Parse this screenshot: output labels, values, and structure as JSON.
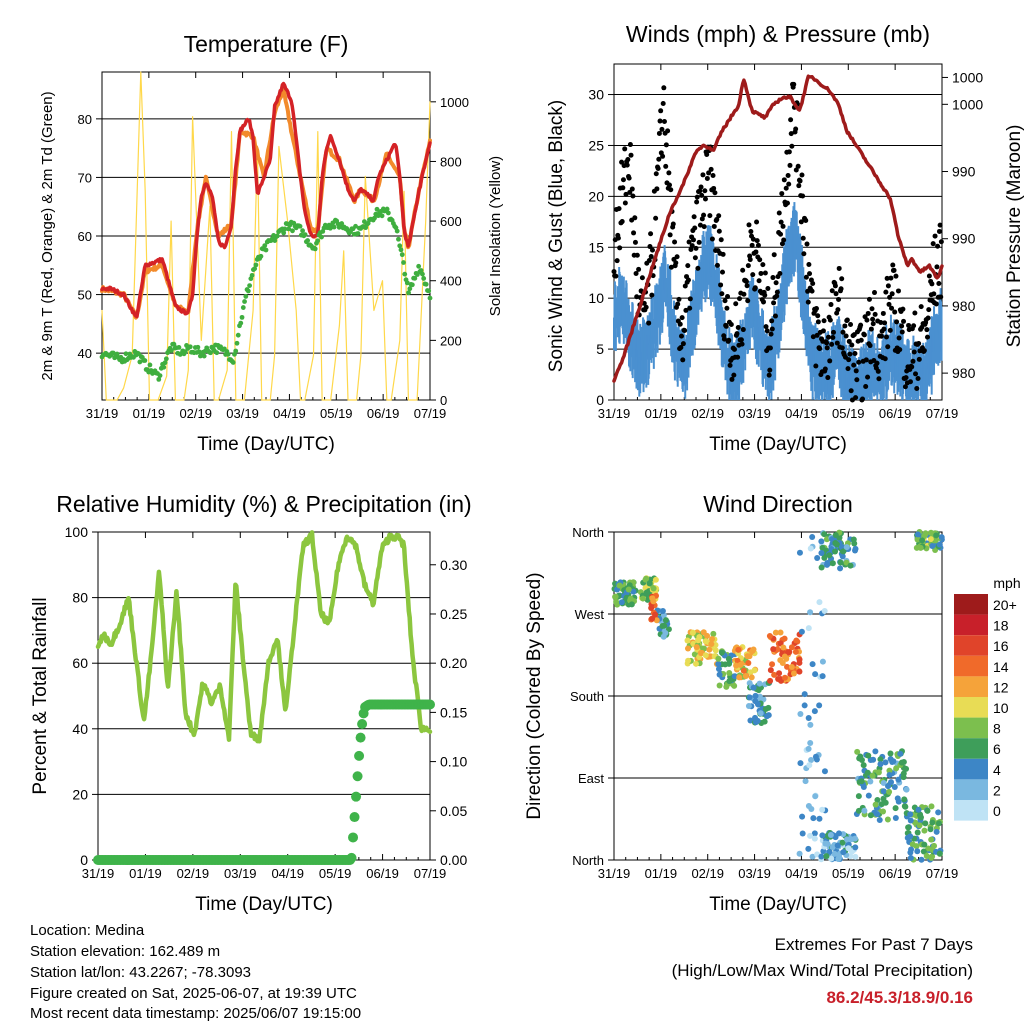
{
  "colors": {
    "temp_2m": "#d42226",
    "temp_9m": "#f28a2b",
    "dewpoint": "#3fae3f",
    "solar": "#ffd84a",
    "wind": "#4a90d0",
    "gust": "#000000",
    "pressure": "#9e1b1b",
    "rh": "#8cc63f",
    "precip": "#3fb34a"
  },
  "x_ticks": [
    "31/19",
    "01/19",
    "02/19",
    "03/19",
    "04/19",
    "05/19",
    "06/19",
    "07/19"
  ],
  "x_label": "Time (Day/UTC)",
  "chart_data": [
    {
      "type": "line",
      "title": "Temperature (F)",
      "xlabel": "Time (Day/UTC)",
      "ylabel": "2m & 9m T (Red, Orange) & 2m Td (Green)",
      "y2label": "Solar Insolation (Yellow)",
      "ylim": [
        32,
        88
      ],
      "y2lim": [
        0,
        1100
      ],
      "yticks": [
        40,
        50,
        60,
        70,
        80
      ],
      "y2ticks": [
        0,
        200,
        400,
        600,
        800,
        1000
      ],
      "series": [
        {
          "name": "2m T",
          "axis": "left",
          "x": [
            0,
            0.2,
            0.5,
            0.8,
            1,
            1.4,
            1.7,
            1.9,
            2,
            2.1,
            2.2,
            2.3,
            2.4,
            2.55,
            2.7,
            2.85,
            3,
            3.1,
            3.2,
            3.4,
            3.5,
            3.6,
            3.75,
            3.9,
            4,
            4.2,
            4.4,
            4.6,
            4.7,
            4.85,
            5,
            5.1,
            5.2,
            5.3,
            5.5,
            5.7,
            5.85,
            6,
            6.15,
            6.3,
            6.4,
            6.6,
            6.8,
            6.9,
            7,
            7.1,
            7.35,
            7.6
          ],
          "y": [
            51,
            51,
            50,
            46,
            55,
            56,
            48,
            47,
            47,
            50,
            60,
            67,
            69,
            67,
            59,
            58,
            62,
            72,
            78,
            80,
            77,
            67,
            70,
            73,
            82,
            86,
            83,
            70,
            64,
            60,
            60,
            70,
            75,
            77,
            73,
            68,
            66,
            68,
            67,
            66,
            70,
            73,
            76,
            70,
            61,
            58,
            68,
            76
          ]
        },
        {
          "name": "9m T",
          "axis": "left",
          "x": [
            0,
            0.5,
            0.8,
            1,
            1.4,
            1.7,
            2,
            2.2,
            2.4,
            2.7,
            3,
            3.2,
            3.5,
            3.75,
            4,
            4.2,
            4.6,
            4.85,
            5,
            5.2,
            5.5,
            5.85,
            6,
            6.3,
            6.6,
            6.9,
            7,
            7.1,
            7.35,
            7.6
          ],
          "y": [
            51,
            50,
            46,
            54,
            55,
            48,
            47,
            61,
            70,
            60,
            62,
            78,
            77,
            70,
            81,
            85,
            70,
            61,
            61,
            75,
            73,
            66,
            68,
            66,
            74,
            70,
            61,
            58,
            68,
            76
          ]
        },
        {
          "name": "2m Td",
          "axis": "left",
          "x": [
            0,
            0.4,
            0.8,
            1,
            1.3,
            1.6,
            1.9,
            2,
            2.3,
            2.6,
            2.9,
            3.05,
            3.2,
            3.35,
            3.5,
            3.7,
            3.9,
            4.05,
            4.3,
            4.6,
            4.9,
            5.2,
            5.5,
            5.8,
            6,
            6.2,
            6.4,
            6.6,
            6.8,
            6.9,
            7,
            7.1,
            7.35,
            7.6
          ],
          "y": [
            40,
            39,
            40,
            38,
            36,
            41,
            40,
            41,
            40,
            41,
            40,
            39,
            45,
            50,
            54,
            57,
            59,
            60,
            62,
            61,
            58,
            62,
            62,
            61,
            61,
            63,
            64,
            64,
            62,
            58,
            55,
            50,
            55,
            50
          ]
        },
        {
          "name": "Solar Insolation",
          "axis": "right",
          "x": [
            0,
            0.1,
            0.35,
            0.5,
            0.7,
            0.9,
            1,
            1.1,
            1.3,
            1.5,
            1.6,
            1.7,
            1.9,
            2,
            2.1,
            2.3,
            2.5,
            2.6,
            2.7,
            2.9,
            3,
            3.1,
            3.3,
            3.5,
            3.6,
            3.7,
            3.9,
            4,
            4.1,
            4.3,
            4.5,
            4.6,
            4.7,
            4.9,
            5,
            5.1,
            5.3,
            5.5,
            5.6,
            5.7,
            5.9,
            6,
            6.1,
            6.3,
            6.5,
            6.6,
            6.7,
            6.9,
            7,
            7.1,
            7.3,
            7.5,
            7.6
          ],
          "y": [
            300,
            0,
            0,
            40,
            150,
            1100,
            700,
            0,
            0,
            80,
            600,
            0,
            0,
            100,
            950,
            200,
            650,
            0,
            0,
            100,
            900,
            0,
            0,
            300,
            850,
            0,
            0,
            150,
            850,
            600,
            300,
            0,
            0,
            150,
            900,
            0,
            0,
            250,
            500,
            0,
            0,
            150,
            750,
            300,
            400,
            0,
            0,
            200,
            700,
            0,
            0,
            600,
            1000
          ]
        }
      ]
    },
    {
      "type": "line",
      "title": "Winds (mph) & Pressure (mb)",
      "xlabel": "Time (Day/UTC)",
      "ylabel": "Sonic Wind & Gust (Blue, Black)",
      "y2label": "Station Pressure (Maroon)",
      "ylim": [
        0,
        33
      ],
      "y2lim": [
        978,
        1003
      ],
      "yticks": [
        0,
        5,
        10,
        15,
        20,
        25,
        30
      ],
      "y2tick_labels": [
        "980",
        "980",
        "990",
        "990",
        "1000",
        "1000"
      ],
      "series": [
        {
          "name": "Sonic Wind",
          "axis": "left",
          "x": [
            0,
            0.2,
            0.4,
            0.6,
            0.8,
            1,
            1.2,
            1.4,
            1.6,
            1.8,
            2,
            2.2,
            2.4,
            2.6,
            2.8,
            3,
            3.2,
            3.4,
            3.6,
            3.8,
            4,
            4.2,
            4.4,
            4.6,
            4.8,
            5,
            5.2,
            5.4,
            5.6,
            5.8,
            6,
            6.2,
            6.4,
            6.6,
            6.8,
            7,
            7.2,
            7.4,
            7.6
          ],
          "y": [
            8,
            10,
            6,
            4,
            5,
            8,
            12,
            6,
            3,
            7,
            12,
            14,
            10,
            4,
            2,
            5,
            9,
            6,
            3,
            7,
            13,
            16,
            10,
            4,
            3,
            3,
            5,
            2,
            1,
            2,
            4,
            2,
            5,
            4,
            2,
            3,
            2,
            5,
            8
          ]
        },
        {
          "name": "Gust",
          "axis": "left",
          "x": [
            0,
            0.2,
            0.35,
            0.6,
            0.8,
            1,
            1.15,
            1.4,
            1.6,
            1.8,
            2,
            2.2,
            2.4,
            2.6,
            2.8,
            3,
            3.2,
            3.4,
            3.6,
            3.8,
            4,
            4.15,
            4.4,
            4.6,
            4.8,
            5,
            5.2,
            5.4,
            5.6,
            5.8,
            6,
            6.2,
            6.4,
            6.6,
            6.8,
            7,
            7.2,
            7.4,
            7.6
          ],
          "y": [
            15,
            20,
            24,
            8,
            10,
            20,
            29,
            12,
            6,
            14,
            18,
            22,
            16,
            8,
            5,
            10,
            16,
            12,
            6,
            14,
            22,
            30,
            18,
            8,
            5,
            6,
            10,
            5,
            3,
            4,
            8,
            5,
            10,
            8,
            4,
            5,
            6,
            12,
            14
          ]
        },
        {
          "name": "Station Pressure",
          "axis": "right",
          "x": [
            0,
            0.2,
            0.5,
            0.8,
            1,
            1.3,
            1.6,
            1.9,
            2.1,
            2.3,
            2.5,
            2.7,
            2.9,
            3,
            3.2,
            3.5,
            3.7,
            3.9,
            4.1,
            4.3,
            4.5,
            4.6,
            4.8,
            5,
            5.2,
            5.4,
            5.6,
            5.8,
            6,
            6.2,
            6.4,
            6.6,
            6.8,
            6.9,
            7.1,
            7.3,
            7.5,
            7.6
          ],
          "y": [
            979.5,
            981,
            984,
            987,
            989,
            992,
            994,
            996.5,
            997,
            996.5,
            998,
            999,
            1000,
            1002,
            999.5,
            999,
            1000,
            1000.5,
            1000.5,
            999.5,
            1002,
            1002,
            1001.5,
            1001,
            1000,
            998,
            997,
            996,
            995,
            994,
            993,
            990,
            988,
            988.5,
            987.5,
            988,
            987,
            988
          ]
        }
      ]
    },
    {
      "type": "line",
      "title": "Relative Humidity (%) & Precipitation (in)",
      "xlabel": "Time (Day/UTC)",
      "ylabel": "Percent & Total Rainfall",
      "ylim": [
        0,
        100
      ],
      "y2lim": [
        0,
        0.3333
      ],
      "yticks": [
        0,
        20,
        40,
        60,
        80,
        100
      ],
      "y2tick_labels": [
        "0.00",
        "0.05",
        "0.10",
        "0.15",
        "0.20",
        "0.25",
        "0.30"
      ],
      "series": [
        {
          "name": "RH",
          "axis": "left",
          "x": [
            0,
            0.1,
            0.3,
            0.5,
            0.7,
            0.9,
            1.05,
            1.2,
            1.4,
            1.6,
            1.8,
            2,
            2.2,
            2.4,
            2.6,
            2.8,
            3.0,
            3.15,
            3.3,
            3.5,
            3.7,
            3.9,
            4.1,
            4.3,
            4.5,
            4.7,
            4.9,
            5.1,
            5.3,
            5.5,
            5.7,
            5.9,
            6.1,
            6.3,
            6.5,
            6.7,
            6.9,
            7.0,
            7.2,
            7.4,
            7.6
          ],
          "y": [
            64,
            69,
            66,
            72,
            80,
            58,
            42,
            60,
            88,
            52,
            82,
            45,
            38,
            54,
            48,
            53,
            37,
            85,
            64,
            38,
            37,
            60,
            68,
            45,
            72,
            96,
            99,
            75,
            72,
            90,
            99,
            96,
            84,
            78,
            95,
            99,
            98,
            96,
            62,
            40,
            40
          ]
        },
        {
          "name": "Total Rainfall",
          "axis": "right",
          "x": [
            0,
            5.8,
            5.85,
            5.9,
            5.95,
            6.0,
            6.05,
            6.1,
            6.2,
            6.5,
            7.0,
            7.6
          ],
          "y": [
            0,
            0,
            0.03,
            0.06,
            0.09,
            0.12,
            0.14,
            0.155,
            0.158,
            0.158,
            0.158,
            0.158
          ]
        }
      ]
    },
    {
      "type": "scatter",
      "title": "Wind Direction",
      "xlabel": "Time (Day/UTC)",
      "ylabel": "Direction (Colored By Speed)",
      "ylim": [
        0,
        360
      ],
      "ytick_labels": [
        "North",
        "East",
        "South",
        "West",
        "North"
      ],
      "legend": {
        "title": "mph",
        "labels": [
          "20+",
          "18",
          "16",
          "14",
          "12",
          "10",
          "8",
          "6",
          "4",
          "2",
          "0"
        ],
        "colors": [
          "#9e1b1b",
          "#c8202a",
          "#e0442a",
          "#f06a2a",
          "#f5a33a",
          "#e8dc55",
          "#7cbf4e",
          "#3e9e5a",
          "#3d86c6",
          "#7ab8e0",
          "#bfe3f5"
        ]
      },
      "clusters": [
        {
          "x": [
            0,
            0.5
          ],
          "dir": [
            280,
            305
          ],
          "speed": 6
        },
        {
          "x": [
            0.6,
            1.0
          ],
          "dir": [
            285,
            310
          ],
          "speed": 8
        },
        {
          "x": [
            1.0,
            1.3
          ],
          "dir": [
            245,
            275
          ],
          "speed": 4
        },
        {
          "x": [
            0.85,
            1.0
          ],
          "dir": [
            260,
            290
          ],
          "speed": 14
        },
        {
          "x": [
            1.7,
            2.4
          ],
          "dir": [
            215,
            250
          ],
          "speed": 10
        },
        {
          "x": [
            2.4,
            2.8
          ],
          "dir": [
            190,
            230
          ],
          "speed": 6
        },
        {
          "x": [
            2.8,
            3.3
          ],
          "dir": [
            200,
            235
          ],
          "speed": 11
        },
        {
          "x": [
            3.1,
            3.6
          ],
          "dir": [
            150,
            195
          ],
          "speed": 4
        },
        {
          "x": [
            3.6,
            4.3
          ],
          "dir": [
            195,
            250
          ],
          "speed": 14
        },
        {
          "x": [
            4.3,
            4.9
          ],
          "dir": [
            0,
            360
          ],
          "speed": 2
        },
        {
          "x": [
            4.8,
            5.6
          ],
          "dir": [
            320,
            360
          ],
          "speed": 5
        },
        {
          "x": [
            4.8,
            5.6
          ],
          "dir": [
            0,
            30
          ],
          "speed": 3
        },
        {
          "x": [
            5.6,
            6.8
          ],
          "dir": [
            40,
            120
          ],
          "speed": 5
        },
        {
          "x": [
            6.8,
            7.6
          ],
          "dir": [
            0,
            60
          ],
          "speed": 6
        },
        {
          "x": [
            7.0,
            7.6
          ],
          "dir": [
            340,
            360
          ],
          "speed": 7
        }
      ]
    }
  ],
  "info": {
    "location": "Location: Medina",
    "elevation": "Station elevation: 162.489 m",
    "latlon": "Station lat/lon: 43.2267; -78.3093",
    "created": "Figure created on Sat, 2025-06-07, at 19:39 UTC",
    "recent": "Most recent data timestamp: 2025/06/07 19:15:00"
  },
  "extremes": {
    "title": "Extremes For Past 7 Days",
    "subtitle": "(High/Low/Max Wind/Total Precipitation)",
    "values": "86.2/45.3/18.9/0.16"
  }
}
